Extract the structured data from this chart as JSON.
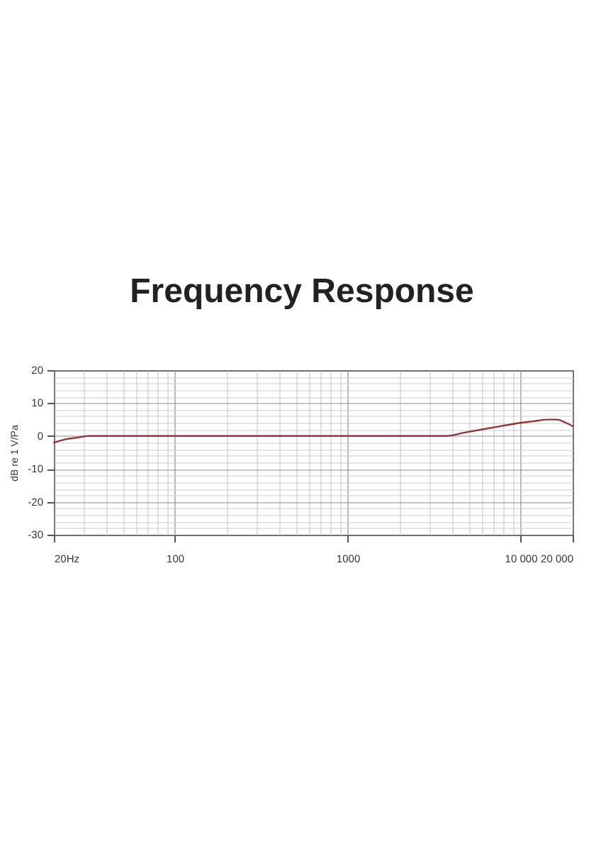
{
  "chart_data": {
    "type": "line",
    "title": "Frequency Response",
    "ylabel": "dB re 1 V/Pa",
    "x": [
      20,
      23.5,
      27.4,
      32,
      50,
      100,
      200,
      500,
      1000,
      2000,
      3700,
      4700,
      6000,
      7700,
      10000,
      12000,
      14300,
      16200,
      18300,
      20000
    ],
    "series": [
      {
        "color": "#8b3a3a",
        "values": [
          -2,
          -1,
          -0.5,
          0,
          0,
          0,
          0,
          0,
          0,
          0,
          0,
          1,
          2,
          3,
          4,
          4.5,
          5,
          5,
          4,
          3
        ]
      }
    ],
    "xlim": [
      20,
      20000
    ],
    "ylim": [
      -30,
      20
    ],
    "xticks": [
      {
        "value": 20,
        "label": "20Hz"
      },
      {
        "value": 30,
        "label": null
      },
      {
        "value": 40,
        "label": null
      },
      {
        "value": 50,
        "label": null
      },
      {
        "value": 60,
        "label": null
      },
      {
        "value": 70,
        "label": null
      },
      {
        "value": 80,
        "label": null
      },
      {
        "value": 90,
        "label": null
      },
      100,
      {
        "value": 200,
        "label": null
      },
      {
        "value": 300,
        "label": null
      },
      {
        "value": 400,
        "label": null
      },
      {
        "value": 500,
        "label": null
      },
      {
        "value": 600,
        "label": null
      },
      {
        "value": 700,
        "label": null
      },
      {
        "value": 800,
        "label": null
      },
      {
        "value": 900,
        "label": null
      },
      1000,
      {
        "value": 2000,
        "label": null
      },
      {
        "value": 3000,
        "label": null
      },
      {
        "value": 4000,
        "label": null
      },
      {
        "value": 5000,
        "label": null
      },
      {
        "value": 6000,
        "label": null
      },
      {
        "value": 7000,
        "label": null
      },
      {
        "value": 8000,
        "label": null
      },
      {
        "value": 9000,
        "label": null
      },
      {
        "value": 10000,
        "label": "10 000"
      },
      {
        "value": 20000,
        "label": "20 000"
      }
    ],
    "yticks": [
      -30,
      {
        "value": -28,
        "label": null
      },
      {
        "value": -26,
        "label": null
      },
      {
        "value": -24,
        "label": null
      },
      {
        "value": -22,
        "label": null
      },
      -20,
      {
        "value": -18,
        "label": null
      },
      {
        "value": -16,
        "label": null
      },
      {
        "value": -14,
        "label": null
      },
      {
        "value": -12,
        "label": null
      },
      -10,
      {
        "value": -8,
        "label": null
      },
      {
        "value": -6,
        "label": null
      },
      {
        "value": -4,
        "label": null
      },
      {
        "value": -2,
        "label": null
      },
      0,
      {
        "value": 2,
        "label": null
      },
      {
        "value": 4,
        "label": null
      },
      {
        "value": 6,
        "label": null
      },
      {
        "value": 8,
        "label": null
      },
      10,
      {
        "value": 12,
        "label": null
      },
      {
        "value": 14,
        "label": null
      },
      {
        "value": 16,
        "label": null
      },
      {
        "value": 18,
        "label": null
      },
      20
    ],
    "log": "x",
    "grid": true
  }
}
